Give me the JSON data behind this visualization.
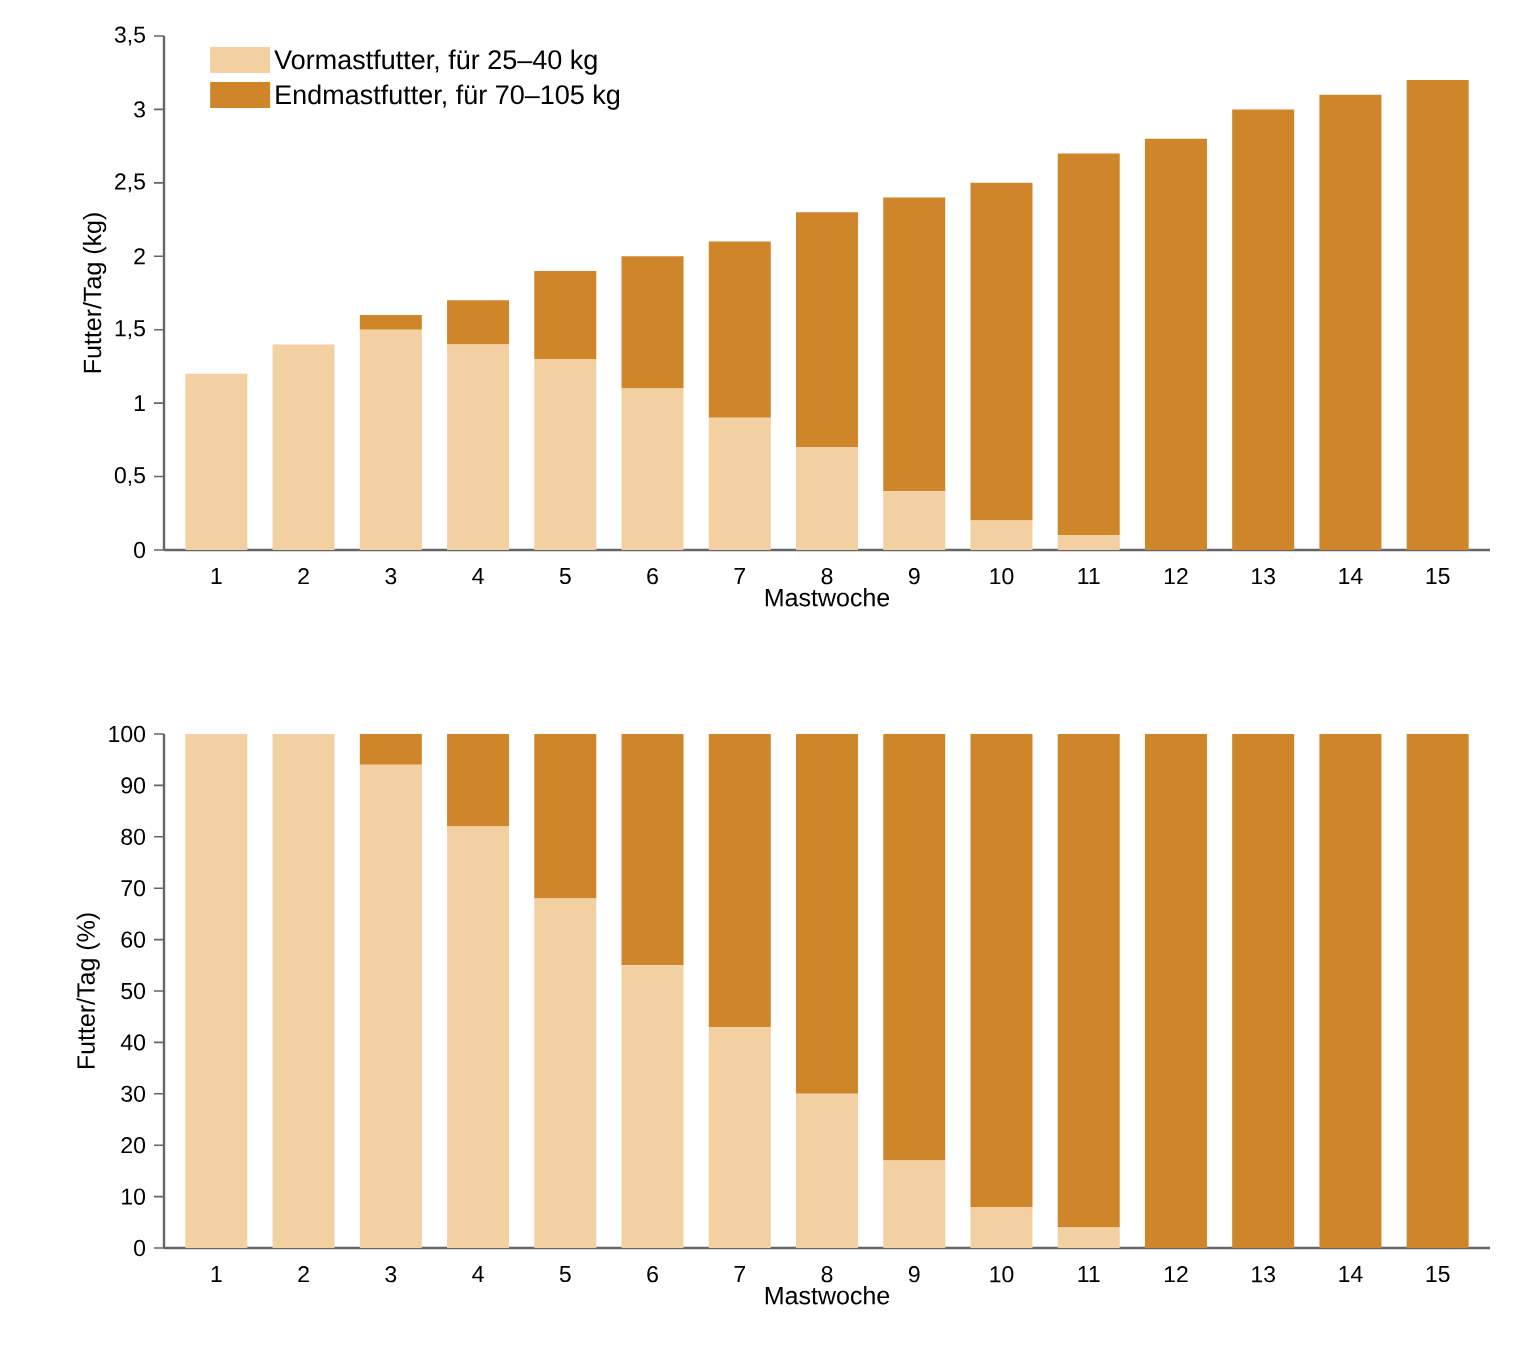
{
  "chart_data": [
    {
      "type": "bar",
      "stacked": true,
      "ylabel": "Futter/Tag (kg)",
      "xlabel": "Mastwoche",
      "categories": [
        "1",
        "2",
        "3",
        "4",
        "5",
        "6",
        "7",
        "8",
        "9",
        "10",
        "11",
        "12",
        "13",
        "14",
        "15"
      ],
      "series": [
        {
          "name": "Vormastfutter, für 25–40 kg",
          "color": "#f2d0a2",
          "values": [
            1.2,
            1.4,
            1.5,
            1.4,
            1.3,
            1.1,
            0.9,
            0.7,
            0.4,
            0.2,
            0.1,
            0,
            0,
            0,
            0
          ]
        },
        {
          "name": "Endmastfutter, für 70–105 kg",
          "color": "#cf862b",
          "values": [
            0,
            0,
            0.1,
            0.3,
            0.6,
            0.9,
            1.2,
            1.6,
            2.0,
            2.3,
            2.6,
            2.8,
            3.0,
            3.1,
            3.2
          ]
        }
      ],
      "ylim": [
        0,
        3.5
      ],
      "yticks": [
        0,
        {
          "value": 0.5,
          "label": "0,5"
        },
        1,
        {
          "value": 1.5,
          "label": "1,5"
        },
        2,
        {
          "value": 2.5,
          "label": "2,5"
        },
        3,
        {
          "value": 3.5,
          "label": "3,5"
        }
      ],
      "legend": "top left"
    },
    {
      "type": "bar",
      "stacked": true,
      "ylabel": "Futter/Tag (%)",
      "xlabel": "Mastwoche",
      "categories": [
        "1",
        "2",
        "3",
        "4",
        "5",
        "6",
        "7",
        "8",
        "9",
        "10",
        "11",
        "12",
        "13",
        "14",
        "15"
      ],
      "series": [
        {
          "color": "#f2d0a2",
          "values": [
            100,
            100,
            94,
            82,
            68,
            55,
            43,
            30,
            17,
            8,
            4,
            0,
            0,
            0,
            0
          ]
        },
        {
          "color": "#cf862b",
          "values": [
            0,
            0,
            6,
            18,
            32,
            45,
            57,
            70,
            83,
            92,
            96,
            100,
            100,
            100,
            100
          ]
        }
      ],
      "ylim": [
        0,
        100
      ],
      "yticks": [
        0,
        10,
        20,
        30,
        40,
        50,
        60,
        70,
        80,
        90,
        100
      ]
    }
  ]
}
